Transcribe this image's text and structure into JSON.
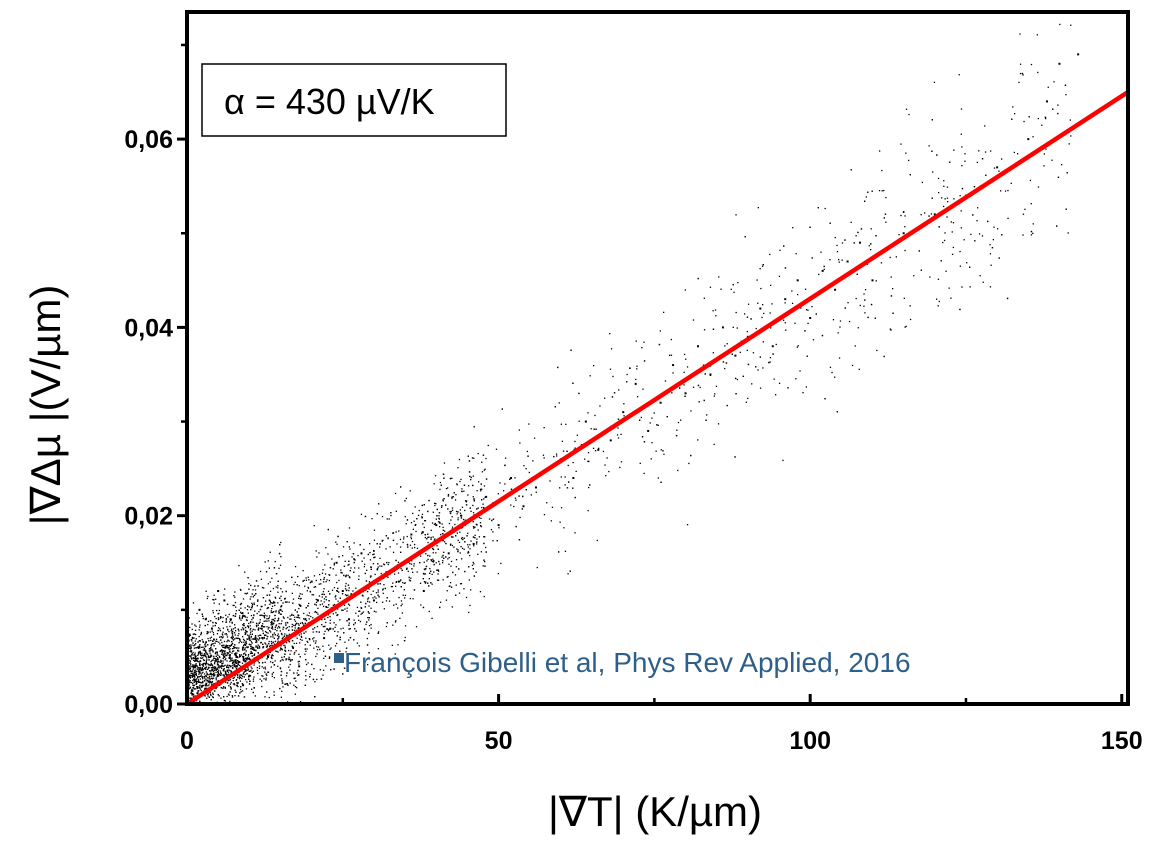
{
  "chart_data": {
    "type": "scatter",
    "title": "",
    "xlabel": "|∇T| (K/µm)",
    "ylabel": "|∇Δµ |(V/µm)",
    "xlim": [
      0,
      151
    ],
    "ylim": [
      0,
      0.0735
    ],
    "x_ticks": [
      0,
      50,
      100,
      150
    ],
    "x_tick_labels": [
      "0",
      "50",
      "100",
      "150"
    ],
    "x_minor_ticks": [
      25,
      75,
      125
    ],
    "y_ticks": [
      0,
      0.02,
      0.04,
      0.06
    ],
    "y_tick_labels": [
      "0,00",
      "0,02",
      "0,04",
      "0,06"
    ],
    "y_minor_ticks": [
      0.01,
      0.03,
      0.05,
      0.07
    ],
    "grid": false,
    "series": [
      {
        "style": "points",
        "color": "#000000",
        "description_of_distribution": "dense cloud along fit line",
        "x": [
          1,
          2,
          3,
          4,
          5,
          6,
          7,
          8,
          9,
          10,
          2,
          4,
          6,
          8,
          10,
          12,
          14,
          1,
          3,
          5,
          7,
          9,
          11,
          13,
          15,
          17,
          19,
          21,
          23,
          25,
          18,
          20,
          22,
          24,
          26,
          28,
          30,
          32,
          34,
          36,
          38,
          40,
          42,
          44,
          46,
          48,
          50,
          52,
          54,
          56,
          58,
          60,
          62,
          64,
          66,
          68,
          70,
          72,
          74,
          76,
          78,
          80,
          82,
          84,
          86,
          88,
          90,
          92,
          94,
          96,
          98,
          100,
          102,
          104,
          106,
          108,
          110,
          115,
          120,
          125,
          130,
          135,
          138,
          140,
          143
        ],
        "y": [
          0.004,
          0.006,
          0.002,
          0.008,
          0.003,
          0.005,
          0.009,
          0.004,
          0.006,
          0.007,
          0.01,
          0.002,
          0.011,
          0.005,
          0.003,
          0.008,
          0.006,
          0.001,
          0.009,
          0.012,
          0.004,
          0.002,
          0.007,
          0.005,
          0.01,
          0.006,
          0.009,
          0.011,
          0.008,
          0.012,
          0.004,
          0.013,
          0.007,
          0.015,
          0.009,
          0.016,
          0.011,
          0.014,
          0.013,
          0.018,
          0.012,
          0.019,
          0.016,
          0.02,
          0.017,
          0.022,
          0.019,
          0.024,
          0.021,
          0.023,
          0.025,
          0.026,
          0.024,
          0.03,
          0.027,
          0.028,
          0.031,
          0.034,
          0.029,
          0.032,
          0.036,
          0.033,
          0.038,
          0.035,
          0.04,
          0.037,
          0.039,
          0.042,
          0.038,
          0.043,
          0.045,
          0.041,
          0.046,
          0.044,
          0.047,
          0.049,
          0.045,
          0.05,
          0.052,
          0.054,
          0.057,
          0.06,
          0.064,
          0.068,
          0.069
        ]
      },
      {
        "style": "line",
        "color": "#ff0000",
        "x": [
          0,
          151
        ],
        "y": [
          0,
          0.065
        ]
      }
    ],
    "legend": {
      "text": "α = 430 µV/K",
      "placement": "top-left"
    },
    "annotation": {
      "text": "François Gibelli et al,  Phys Rev Applied, 2016",
      "color": "#2e5f8a"
    }
  }
}
